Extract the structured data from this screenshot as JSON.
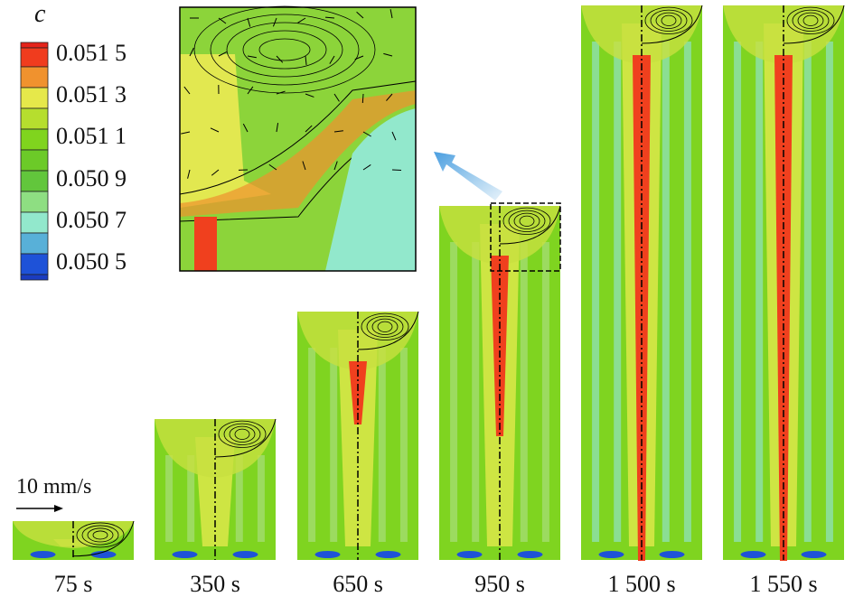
{
  "legend": {
    "title": "c",
    "labels": [
      "0.051 5",
      "0.051 3",
      "0.051 1",
      "0.050 9",
      "0.050 7",
      "0.050 5"
    ],
    "colors": [
      "#e5231a",
      "#f03c1e",
      "#f0922e",
      "#e6e84a",
      "#b6de2e",
      "#80d41e",
      "#6cca28",
      "#62c63c",
      "#8ede82",
      "#92e8cc",
      "#58b0d8",
      "#1e52d8",
      "#1a3cc0"
    ]
  },
  "velocity_scale": {
    "label": "10 mm/s"
  },
  "panels": [
    {
      "time": "75 s"
    },
    {
      "time": "350 s"
    },
    {
      "time": "650 s"
    },
    {
      "time": "950 s"
    },
    {
      "time": "1 500 s"
    },
    {
      "time": "1 550 s"
    }
  ],
  "colors": {
    "background_green": "#7fd420",
    "red_core": "#f0401e",
    "yellow_band": "#dce84a",
    "blue_spot": "#1e52d8",
    "arrow_blue": "#5aa8e0"
  }
}
